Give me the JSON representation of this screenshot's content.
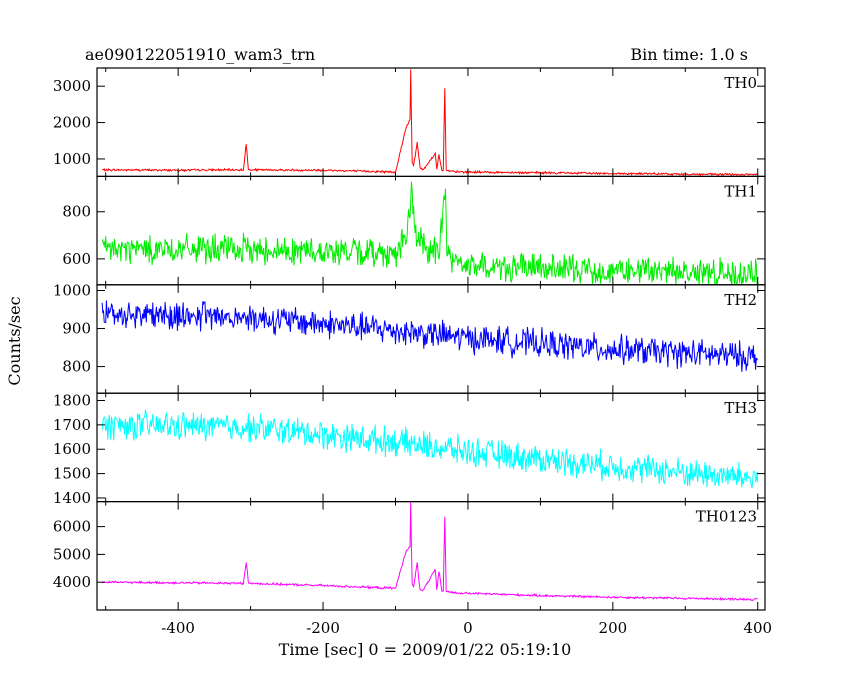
{
  "header": {
    "left_title": "ae090122051910_wam3_trn",
    "right_title": "Bin time: 1.0 s"
  },
  "chart_data": {
    "type": "line",
    "title": "ae090122051910_wam3_trn",
    "subtitle": "Bin time: 1.0 s",
    "xlabel": "Time [sec] 0 = 2009/01/22 05:19:10",
    "ylabel": "Counts/sec",
    "xlim": [
      -512,
      410
    ],
    "xticks": [
      -400,
      -200,
      0,
      200,
      400
    ],
    "grid": false,
    "legend": "none",
    "panels": [
      {
        "name": "TH0",
        "color": "#ff0000",
        "ylim": [
          520,
          3500
        ],
        "yticks": [
          1000,
          2000,
          3000
        ],
        "series": [
          {
            "x": [
              -505,
              -400,
              -310,
              -306,
              -303,
              -200,
              -100,
              -85,
              -83,
              -80,
              -79,
              -78,
              -77,
              -75,
              -70,
              -68,
              -66,
              -62,
              -45,
              -43,
              -40,
              -36,
              -34,
              -32,
              -30,
              -25,
              -20,
              0,
              100,
              200,
              300,
              400
            ],
            "y": [
              700,
              690,
              700,
              1400,
              700,
              690,
              640,
              1900,
              1950,
              2100,
              3450,
              2100,
              900,
              820,
              1450,
              1100,
              760,
              700,
              1150,
              700,
              1120,
              700,
              680,
              2950,
              680,
              660,
              650,
              640,
              620,
              600,
              580,
              570
            ]
          }
        ]
      },
      {
        "name": "TH1",
        "color": "#00ee00",
        "ylim": [
          490,
          950
        ],
        "yticks": [
          600,
          800
        ],
        "series": [
          {
            "x": [
              -505,
              -300,
              -100,
              -85,
              -80,
              -78,
              -76,
              -72,
              -60,
              -40,
              -31,
              -29,
              -20,
              0,
              100,
              200,
              300,
              400
            ],
            "y": [
              640,
              640,
              625,
              700,
              790,
              940,
              790,
              700,
              650,
              620,
              930,
              620,
              590,
              570,
              560,
              550,
              545,
              535
            ]
          }
        ]
      },
      {
        "name": "TH2",
        "color": "#0000ff",
        "ylim": [
          730,
          1015
        ],
        "yticks": [
          800,
          900,
          1000
        ],
        "series": [
          {
            "x": [
              -505,
              -300,
              -100,
              0,
              100,
              200,
              300,
              400
            ],
            "y": [
              940,
              930,
              895,
              875,
              860,
              845,
              835,
              825
            ]
          }
        ]
      },
      {
        "name": "TH3",
        "color": "#00ffff",
        "ylim": [
          1385,
          1830
        ],
        "yticks": [
          1400,
          1500,
          1600,
          1700,
          1800
        ],
        "series": [
          {
            "x": [
              -505,
              -300,
              -100,
              0,
              100,
              200,
              300,
              400
            ],
            "y": [
              1700,
              1690,
              1630,
              1590,
              1560,
              1530,
              1505,
              1480
            ]
          }
        ]
      },
      {
        "name": "TH0123",
        "color": "#ff00ff",
        "ylim": [
          3000,
          6900
        ],
        "yticks": [
          4000,
          5000,
          6000
        ],
        "series": [
          {
            "x": [
              -505,
              -400,
              -310,
              -306,
              -303,
              -200,
              -100,
              -85,
              -83,
              -80,
              -79,
              -78,
              -77,
              -75,
              -70,
              -68,
              -66,
              -62,
              -45,
              -43,
              -40,
              -36,
              -34,
              -32,
              -30,
              -25,
              -20,
              0,
              100,
              200,
              300,
              400
            ],
            "y": [
              4000,
              3980,
              3960,
              4750,
              3960,
              3880,
              3780,
              5150,
              5200,
              5300,
              6850,
              5300,
              3950,
              3820,
              4700,
              4100,
              3760,
              3700,
              4450,
              3700,
              4380,
              3700,
              3680,
              6350,
              3680,
              3650,
              3620,
              3600,
              3520,
              3460,
              3420,
              3380
            ]
          }
        ]
      }
    ]
  }
}
